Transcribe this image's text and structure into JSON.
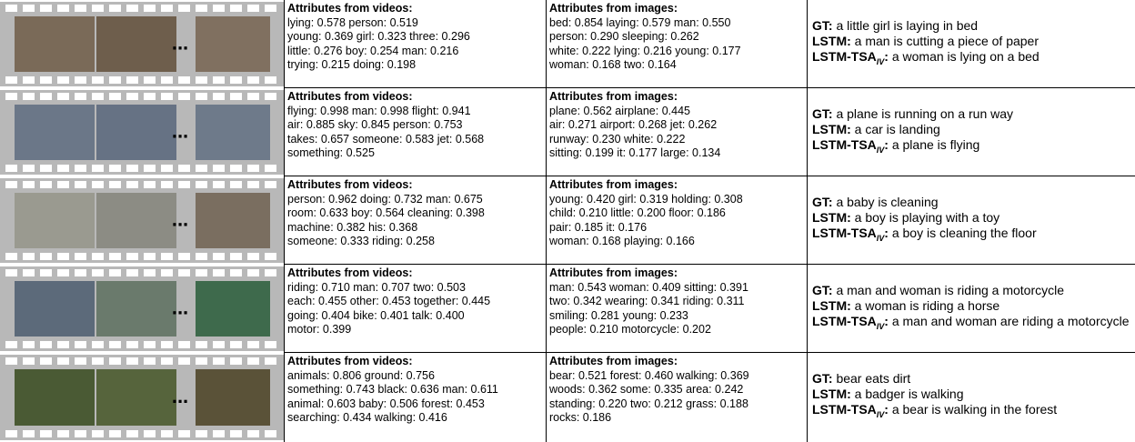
{
  "headings": {
    "videos": "Attributes from videos:",
    "images": "Attributes from images:"
  },
  "labels": {
    "gt": "GT:",
    "lstm": "LSTM:",
    "tsa": "LSTM-TSA",
    "tsa_sub": "IV",
    "colon": ":"
  },
  "ellipsis": "...",
  "rows": [
    {
      "video_attrs": [
        "lying: 0.578 person: 0.519",
        "young: 0.369 girl: 0.323 three: 0.296",
        "little: 0.276 boy: 0.254 man: 0.216",
        "trying: 0.215 doing: 0.198"
      ],
      "image_attrs": [
        "bed: 0.854 laying: 0.579 man: 0.550",
        "person: 0.290 sleeping: 0.262",
        "white: 0.222 lying: 0.216 young: 0.177",
        "woman: 0.168 two: 0.164"
      ],
      "gt": "a little girl is laying in bed",
      "lstm": "a man is cutting a piece of paper",
      "tsa": "a woman is lying on a bed"
    },
    {
      "video_attrs": [
        "flying: 0.998 man: 0.998 flight: 0.941",
        "air: 0.885 sky: 0.845 person: 0.753",
        "takes: 0.657 someone: 0.583 jet: 0.568",
        "something: 0.525"
      ],
      "image_attrs": [
        "plane: 0.562 airplane: 0.445",
        "air: 0.271 airport: 0.268 jet: 0.262",
        "runway: 0.230 white: 0.222",
        "sitting: 0.199 it: 0.177 large: 0.134"
      ],
      "gt": "a plane is running on a run way",
      "lstm": "a car is landing",
      "tsa": "a plane is flying"
    },
    {
      "video_attrs": [
        "person: 0.962 doing: 0.732 man: 0.675",
        "room: 0.633 boy: 0.564 cleaning: 0.398",
        "machine: 0.382  his: 0.368",
        "someone: 0.333 riding: 0.258"
      ],
      "image_attrs": [
        "young: 0.420 girl: 0.319 holding: 0.308",
        "child: 0.210 little: 0.200 floor: 0.186",
        "pair: 0.185 it: 0.176",
        "woman: 0.168 playing: 0.166"
      ],
      "gt": "a baby is cleaning",
      "lstm": "a boy is playing with a toy",
      "tsa": "a boy is cleaning the floor"
    },
    {
      "video_attrs": [
        "riding: 0.710 man: 0.707 two: 0.503",
        "each: 0.455 other: 0.453 together: 0.445",
        "going: 0.404 bike: 0.401 talk: 0.400",
        "motor: 0.399"
      ],
      "image_attrs": [
        "man: 0.543 woman: 0.409 sitting: 0.391",
        "two: 0.342 wearing: 0.341 riding: 0.311",
        "smiling: 0.281 young: 0.233",
        "people: 0.210 motorcycle: 0.202"
      ],
      "gt": "a man and woman is riding a motorcycle",
      "lstm": "a woman is riding a horse",
      "tsa": "a man and woman are riding a motorcycle"
    },
    {
      "video_attrs": [
        "animals: 0.806 ground: 0.756",
        "something: 0.743 black: 0.636 man: 0.611",
        "animal: 0.603 baby: 0.506 forest: 0.453",
        "searching: 0.434 walking: 0.416"
      ],
      "image_attrs": [
        "bear: 0.521 forest: 0.460 walking: 0.369",
        "woods: 0.362 some: 0.335 area: 0.242",
        "standing: 0.220 two: 0.212 grass: 0.188",
        "rocks: 0.186"
      ],
      "gt": "bear eats dirt",
      "lstm": "a badger is walking",
      "tsa": "a bear is walking in the forest"
    }
  ]
}
